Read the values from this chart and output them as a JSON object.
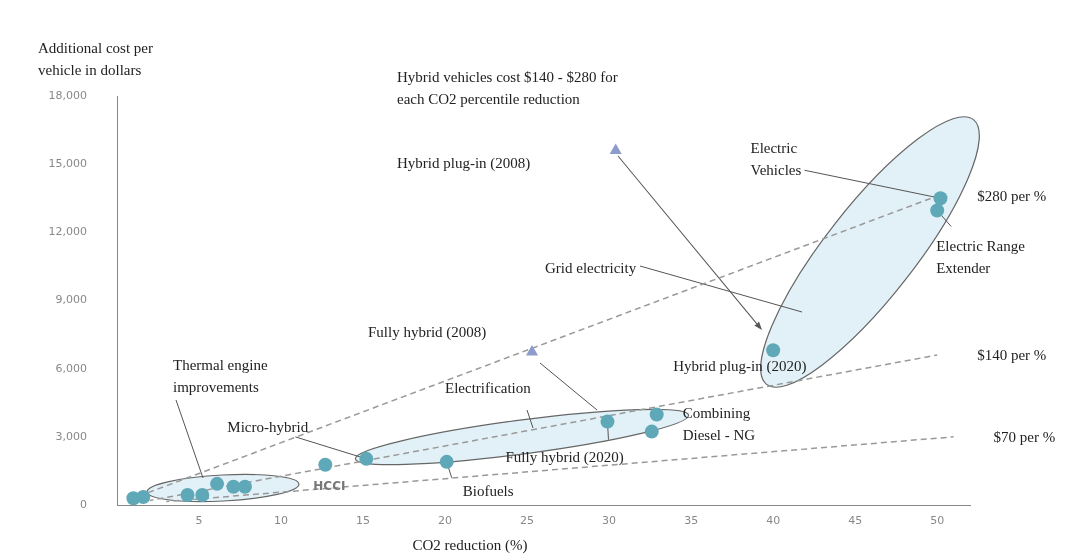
{
  "chart_data": {
    "type": "scatter",
    "ylabel": "Additional cost per\nvehicle in dollars",
    "xlabel": "CO2 reduction (%)",
    "xlim": [
      0,
      52
    ],
    "xticks": [
      5,
      10,
      15,
      20,
      25,
      30,
      35,
      40,
      45,
      50
    ],
    "ylim": [
      0,
      18000
    ],
    "yticks": [
      {
        "value": 0,
        "label": "0"
      },
      {
        "value": 3000,
        "label": "3,000"
      },
      {
        "value": 6000,
        "label": "6,000"
      },
      {
        "value": 9000,
        "label": "9,000"
      },
      {
        "value": 12000,
        "label": "12,000"
      },
      {
        "value": 15000,
        "label": "15,000"
      },
      {
        "value": 18000,
        "label": "18,000"
      }
    ],
    "grid": false,
    "legend": false,
    "series": [
      {
        "type": "scatter",
        "color": "#5fa8b8",
        "marker": "circle",
        "x": [
          1.0,
          1.6,
          4.3,
          5.2,
          6.1,
          7.1,
          7.8,
          12.7,
          15.2,
          20.1,
          29.9,
          32.9,
          32.6,
          40,
          50.2,
          50
        ],
        "values": [
          300,
          350,
          440,
          440,
          930,
          800,
          800,
          1770,
          2030,
          1900,
          3670,
          3980,
          3230,
          6810,
          13500,
          12960
        ]
      },
      {
        "type": "scatter",
        "color": "#8d9ccc",
        "marker": "triangle",
        "x": [
          25.3,
          30.4
        ],
        "values": [
          6730,
          15600
        ]
      },
      {
        "type": "line",
        "name": "$280 per %",
        "color": "#999999",
        "line_style": "dashed",
        "marker": "none",
        "x": [
          1,
          50
        ],
        "values": [
          300,
          13600
        ]
      },
      {
        "type": "line",
        "name": "$140 per %",
        "color": "#999999",
        "line_style": "dashed",
        "marker": "none",
        "x": [
          2,
          50
        ],
        "values": [
          200,
          6600
        ]
      },
      {
        "type": "line",
        "name": "$70 per %",
        "color": "#999999",
        "line_style": "dashed",
        "marker": "none",
        "x": [
          3,
          51
        ],
        "values": [
          150,
          3000
        ]
      }
    ],
    "annotations": [
      "Hybrid vehicles cost $140 - $280 for\neach CO2 percentile reduction",
      "Hybrid plug-in (2008)",
      {
        "text": "Electric\nVehicles",
        "x": 50.2,
        "y": 13500
      },
      {
        "text": "Electric Range\nExtender",
        "x": 50,
        "y": 12960
      },
      "Grid electricity",
      "Fully hybrid (2008)",
      {
        "text": "Hybrid plug-in (2020)",
        "x": 40,
        "y": 6810
      },
      "Thermal engine\nimprovements",
      "Electrification",
      {
        "text": "Micro-hybrid",
        "x": 15.2,
        "y": 2030
      },
      {
        "text": "HCCI",
        "x": 12.7,
        "y": 1770
      },
      {
        "text": "Combining\nDiesel - NG",
        "x": 32.9,
        "y": 3980
      },
      {
        "text": "Fully hybrid (2020)",
        "x": 29.9,
        "y": 3670
      },
      {
        "text": "Biofuels",
        "x": 20.1,
        "y": 1900
      }
    ]
  }
}
